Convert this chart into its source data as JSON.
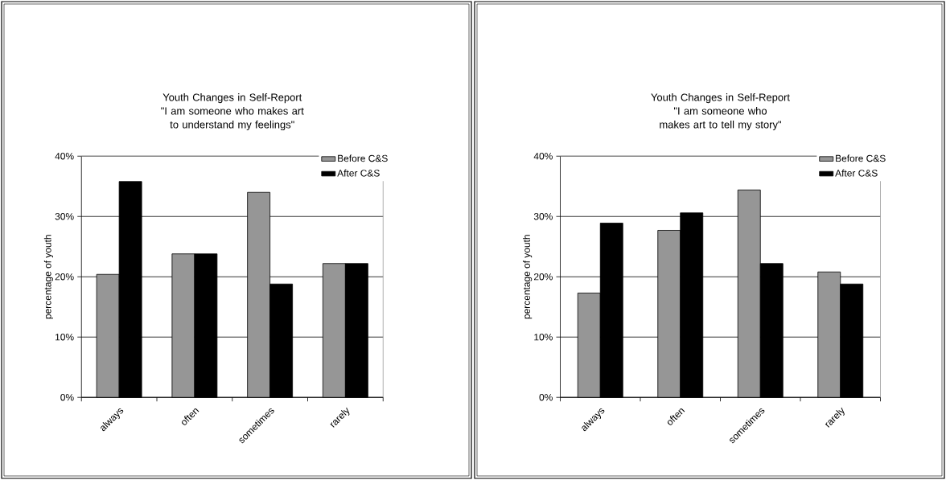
{
  "chart_data": [
    {
      "type": "bar",
      "title": "Youth Changes in Self-Report",
      "subtitle": "\"I am someone who makes art to understand my feelings\"",
      "ylabel": "percentage of youth",
      "categories": [
        "always",
        "often",
        "sometimes",
        "rarely"
      ],
      "series": [
        {
          "name": "Before C&S",
          "color": "#969696",
          "values": [
            20.4,
            23.8,
            34.0,
            22.2
          ]
        },
        {
          "name": "After C&S",
          "color": "#000000",
          "values": [
            35.8,
            23.8,
            18.8,
            22.2
          ]
        }
      ],
      "ylim": [
        0,
        40
      ],
      "yticks": [
        {
          "value": 0,
          "label": "0%"
        },
        {
          "value": 10,
          "label": "10%"
        },
        {
          "value": 20,
          "label": "20%"
        },
        {
          "value": 30,
          "label": "30%"
        },
        {
          "value": 40,
          "label": "40%"
        }
      ],
      "grid": "y",
      "legend": "top right"
    },
    {
      "type": "bar",
      "title": "Youth Changes in Self-Report",
      "subtitle": "\"I am someone who makes art to tell my story\"",
      "ylabel": "percentage of youth",
      "categories": [
        "always",
        "often",
        "sometimes",
        "rarely"
      ],
      "series": [
        {
          "name": "Before C&S",
          "color": "#969696",
          "values": [
            17.3,
            27.7,
            34.4,
            20.8
          ]
        },
        {
          "name": "After C&S",
          "color": "#000000",
          "values": [
            28.9,
            30.6,
            22.2,
            18.8
          ]
        }
      ],
      "ylim": [
        0,
        40
      ],
      "yticks": [
        {
          "value": 0,
          "label": "0%"
        },
        {
          "value": 10,
          "label": "10%"
        },
        {
          "value": 20,
          "label": "20%"
        },
        {
          "value": 30,
          "label": "30%"
        },
        {
          "value": 40,
          "label": "40%"
        }
      ],
      "grid": "y",
      "legend": "top right"
    }
  ]
}
